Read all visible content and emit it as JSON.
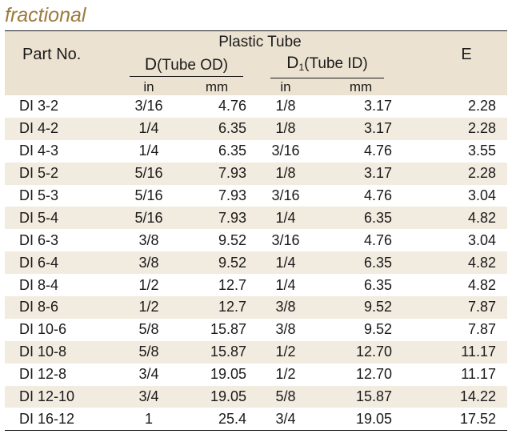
{
  "title": "fractional",
  "headers": {
    "part_no": "Part No.",
    "group": "Plastic Tube",
    "d_label": "D(Tube OD)",
    "d_letter": "D",
    "d_rest": "(Tube OD)",
    "d1_letter": "D",
    "d1_sub": "1",
    "d1_rest": "(Tube ID)",
    "e_label": "E",
    "unit_in_1": "in",
    "unit_mm_1": "mm",
    "unit_in_2": "in",
    "unit_mm_2": "mm"
  },
  "colors": {
    "title": "#9b7a3c",
    "header_bg": "#ece2d1",
    "stripe_bg": "#f2ebdf"
  },
  "rows": [
    {
      "part": "DI 3-2",
      "d_in": "3/16",
      "d_mm": "4.76",
      "d1_in": "1/8",
      "d1_mm": "3.17",
      "e": "2.28"
    },
    {
      "part": "DI 4-2",
      "d_in": "1/4",
      "d_mm": "6.35",
      "d1_in": "1/8",
      "d1_mm": "3.17",
      "e": "2.28"
    },
    {
      "part": "DI 4-3",
      "d_in": "1/4",
      "d_mm": "6.35",
      "d1_in": "3/16",
      "d1_mm": "4.76",
      "e": "3.55"
    },
    {
      "part": "DI 5-2",
      "d_in": "5/16",
      "d_mm": "7.93",
      "d1_in": "1/8",
      "d1_mm": "3.17",
      "e": "2.28"
    },
    {
      "part": "DI 5-3",
      "d_in": "5/16",
      "d_mm": "7.93",
      "d1_in": "3/16",
      "d1_mm": "4.76",
      "e": "3.04"
    },
    {
      "part": "DI 5-4",
      "d_in": "5/16",
      "d_mm": "7.93",
      "d1_in": "1/4",
      "d1_mm": "6.35",
      "e": "4.82"
    },
    {
      "part": "DI 6-3",
      "d_in": "3/8",
      "d_mm": "9.52",
      "d1_in": "3/16",
      "d1_mm": "4.76",
      "e": "3.04"
    },
    {
      "part": "DI 6-4",
      "d_in": "3/8",
      "d_mm": "9.52",
      "d1_in": "1/4",
      "d1_mm": "6.35",
      "e": "4.82"
    },
    {
      "part": "DI 8-4",
      "d_in": "1/2",
      "d_mm": "12.7",
      "d1_in": "1/4",
      "d1_mm": "6.35",
      "e": "4.82"
    },
    {
      "part": "DI 8-6",
      "d_in": "1/2",
      "d_mm": "12.7",
      "d1_in": "3/8",
      "d1_mm": "9.52",
      "e": "7.87"
    },
    {
      "part": "DI 10-6",
      "d_in": "5/8",
      "d_mm": "15.87",
      "d1_in": "3/8",
      "d1_mm": "9.52",
      "e": "7.87"
    },
    {
      "part": "DI 10-8",
      "d_in": "5/8",
      "d_mm": "15.87",
      "d1_in": "1/2",
      "d1_mm": "12.70",
      "e": "11.17"
    },
    {
      "part": "DI 12-8",
      "d_in": "3/4",
      "d_mm": "19.05",
      "d1_in": "1/2",
      "d1_mm": "12.70",
      "e": "11.17"
    },
    {
      "part": "DI 12-10",
      "d_in": "3/4",
      "d_mm": "19.05",
      "d1_in": "5/8",
      "d1_mm": "15.87",
      "e": "14.22"
    },
    {
      "part": "DI 16-12",
      "d_in": "1",
      "d_mm": "25.4",
      "d1_in": "3/4",
      "d1_mm": "19.05",
      "e": "17.52"
    }
  ]
}
